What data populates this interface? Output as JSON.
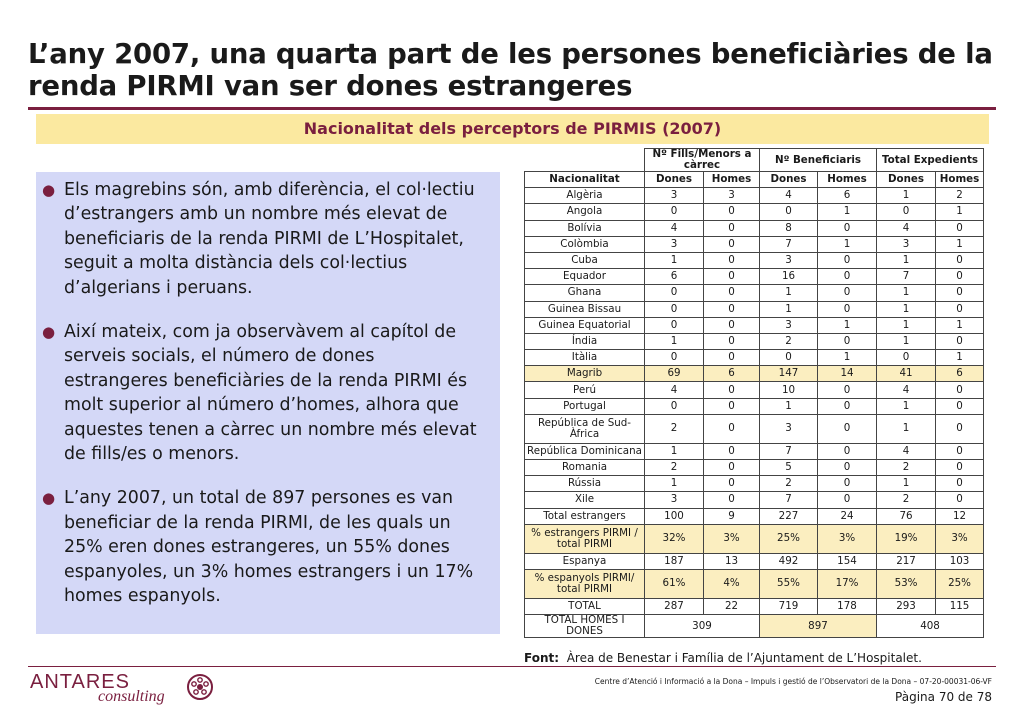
{
  "title": "L’any 2007, una quarta part de les persones beneficiàries de la renda PIRMI van ser dones estrangeres",
  "subtitle": "Nacionalitat dels perceptors de PIRMIS (2007)",
  "bullets": [
    "Els magrebins són, amb diferència, el col·lectiu d’estrangers amb un nombre més elevat de beneficiaris de la renda PIRMI de L’Hospitalet, seguit a molta distància dels col·lectius d’algerians i peruans.",
    "Així mateix, com ja observàvem al capítol de serveis socials, el número de dones estrangeres beneficiàries de la renda PIRMI és molt superior al número d’homes, alhora que aquestes tenen a càrrec un nombre més elevat de fills/es o menors.",
    "L’any 2007, un total de 897 persones es van beneficiar de la renda PIRMI, de les quals un 25% eren dones estrangeres, un 55% dones espanyoles, un 3% homes estrangers i un 17% homes espanyols."
  ],
  "table": {
    "group_headers": [
      "Nº Fills/Menors a càrrec",
      "Nº Beneficiaris",
      "Total Expedients"
    ],
    "col_headers": [
      "Nacionalitat",
      "Dones",
      "Homes",
      "Dones",
      "Homes",
      "Dones",
      "Homes"
    ],
    "rows": [
      {
        "c": [
          "Algèria",
          "3",
          "3",
          "4",
          "6",
          "1",
          "2"
        ]
      },
      {
        "c": [
          "Angola",
          "0",
          "0",
          "0",
          "1",
          "0",
          "1"
        ]
      },
      {
        "c": [
          "Bolívia",
          "4",
          "0",
          "8",
          "0",
          "4",
          "0"
        ]
      },
      {
        "c": [
          "Colòmbia",
          "3",
          "0",
          "7",
          "1",
          "3",
          "1"
        ]
      },
      {
        "c": [
          "Cuba",
          "1",
          "0",
          "3",
          "0",
          "1",
          "0"
        ]
      },
      {
        "c": [
          "Equador",
          "6",
          "0",
          "16",
          "0",
          "7",
          "0"
        ]
      },
      {
        "c": [
          "Ghana",
          "0",
          "0",
          "1",
          "0",
          "1",
          "0"
        ]
      },
      {
        "c": [
          "Guinea Bissau",
          "0",
          "0",
          "1",
          "0",
          "1",
          "0"
        ]
      },
      {
        "c": [
          "Guinea Equatorial",
          "0",
          "0",
          "3",
          "1",
          "1",
          "1"
        ]
      },
      {
        "c": [
          "Índia",
          "1",
          "0",
          "2",
          "0",
          "1",
          "0"
        ]
      },
      {
        "c": [
          "Itàlia",
          "0",
          "0",
          "0",
          "1",
          "0",
          "1"
        ]
      },
      {
        "c": [
          "Magrib",
          "69",
          "6",
          "147",
          "14",
          "41",
          "6"
        ]
      },
      {
        "c": [
          "Perú",
          "4",
          "0",
          "10",
          "0",
          "4",
          "0"
        ]
      },
      {
        "c": [
          "Portugal",
          "0",
          "0",
          "1",
          "0",
          "1",
          "0"
        ]
      },
      {
        "c": [
          "República de Sud-Àfrica",
          "2",
          "0",
          "3",
          "0",
          "1",
          "0"
        ]
      },
      {
        "c": [
          "República Dominicana",
          "1",
          "0",
          "7",
          "0",
          "4",
          "0"
        ]
      },
      {
        "c": [
          "Romania",
          "2",
          "0",
          "5",
          "0",
          "2",
          "0"
        ]
      },
      {
        "c": [
          "Rússia",
          "1",
          "0",
          "2",
          "0",
          "1",
          "0"
        ]
      },
      {
        "c": [
          "Xile",
          "3",
          "0",
          "7",
          "0",
          "2",
          "0"
        ]
      },
      {
        "c": [
          "Total estrangers",
          "100",
          "9",
          "227",
          "24",
          "76",
          "12"
        ]
      },
      {
        "c": [
          "% estrangers PIRMI / total PIRMI",
          "32%",
          "3%",
          "25%",
          "3%",
          "19%",
          "3%"
        ]
      },
      {
        "c": [
          "Espanya",
          "187",
          "13",
          "492",
          "154",
          "217",
          "103"
        ]
      },
      {
        "c": [
          "% espanyols PIRMI/ total PIRMI",
          "61%",
          "4%",
          "55%",
          "17%",
          "53%",
          "25%"
        ]
      },
      {
        "c": [
          "TOTAL",
          "287",
          "22",
          "719",
          "178",
          "293",
          "115"
        ]
      }
    ],
    "total_row": {
      "label": "TOTAL HOMES I DONES",
      "v1": "309",
      "v2": "897",
      "v3": "408"
    }
  },
  "source": {
    "label": "Font:",
    "text": "Àrea de Benestar i Família de l’Ajuntament de L’Hospitalet."
  },
  "logo": {
    "line1": "ANTARES",
    "line2": "consulting"
  },
  "footer_text": "Centre d’Atenció i Informació a la Dona – Impuls i gestió de l’Observatori de la Dona – 07-20-00031-06-VF",
  "page": "Pàgina 70 de 78",
  "colors": {
    "accent": "#7a1f3f",
    "highlight": "#fbeec0",
    "panel": "#d4d8f7",
    "subtitle_bg": "#fbe9a0"
  }
}
